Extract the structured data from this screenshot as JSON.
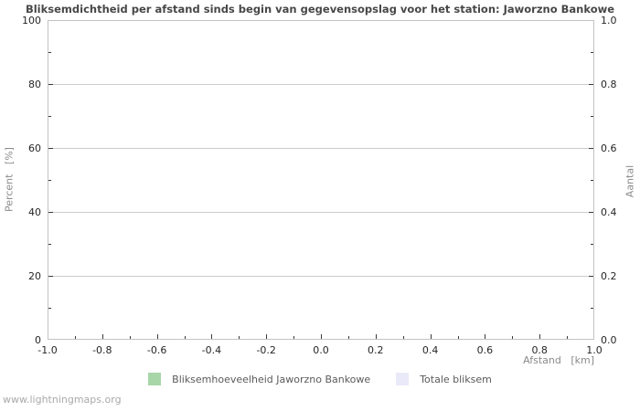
{
  "chart_data": {
    "type": "bar",
    "title": "Bliksemdichtheid per afstand sinds begin van gegevensopslag voor het station: Jaworzno Bankowe",
    "xlabel": "Afstand   [km]",
    "ylabel_left": "Percent   [%]",
    "ylabel_right": "Aantal",
    "xlim": [
      -1.0,
      1.0
    ],
    "ylim_left": [
      0,
      100
    ],
    "ylim_right": [
      0.0,
      1.0
    ],
    "x_tick_labels": [
      "-1.0",
      "-0.8",
      "-0.6",
      "-0.4",
      "-0.2",
      "0.0",
      "0.2",
      "0.4",
      "0.6",
      "0.8",
      "1.0"
    ],
    "y_left_tick_labels": [
      "0",
      "20",
      "40",
      "60",
      "80",
      "100"
    ],
    "y_right_tick_labels": [
      "0.0",
      "0.2",
      "0.4",
      "0.6",
      "0.8",
      "1.0"
    ],
    "x_minor_step": 0.1,
    "y_left_minor_step": 10,
    "grid": "horizontal-only",
    "legend_position": "bottom-center",
    "legend": [
      {
        "label": "Bliksemhoeveelheid Jaworzno Bankowe",
        "color": "#a8d6a8"
      },
      {
        "label": "Totale bliksem",
        "color": "#e9e9f8"
      }
    ],
    "series": []
  },
  "colors": {
    "title": "#474747",
    "tick_label": "#262626",
    "axis_label": "#8a8a8a",
    "grid": "#cccccc",
    "border": "#c3c3c3",
    "tick": "#3a3a3a",
    "legend_text": "#5a5a5a",
    "watermark": "#a9a9a9"
  },
  "watermark": "www.lightningmaps.org"
}
